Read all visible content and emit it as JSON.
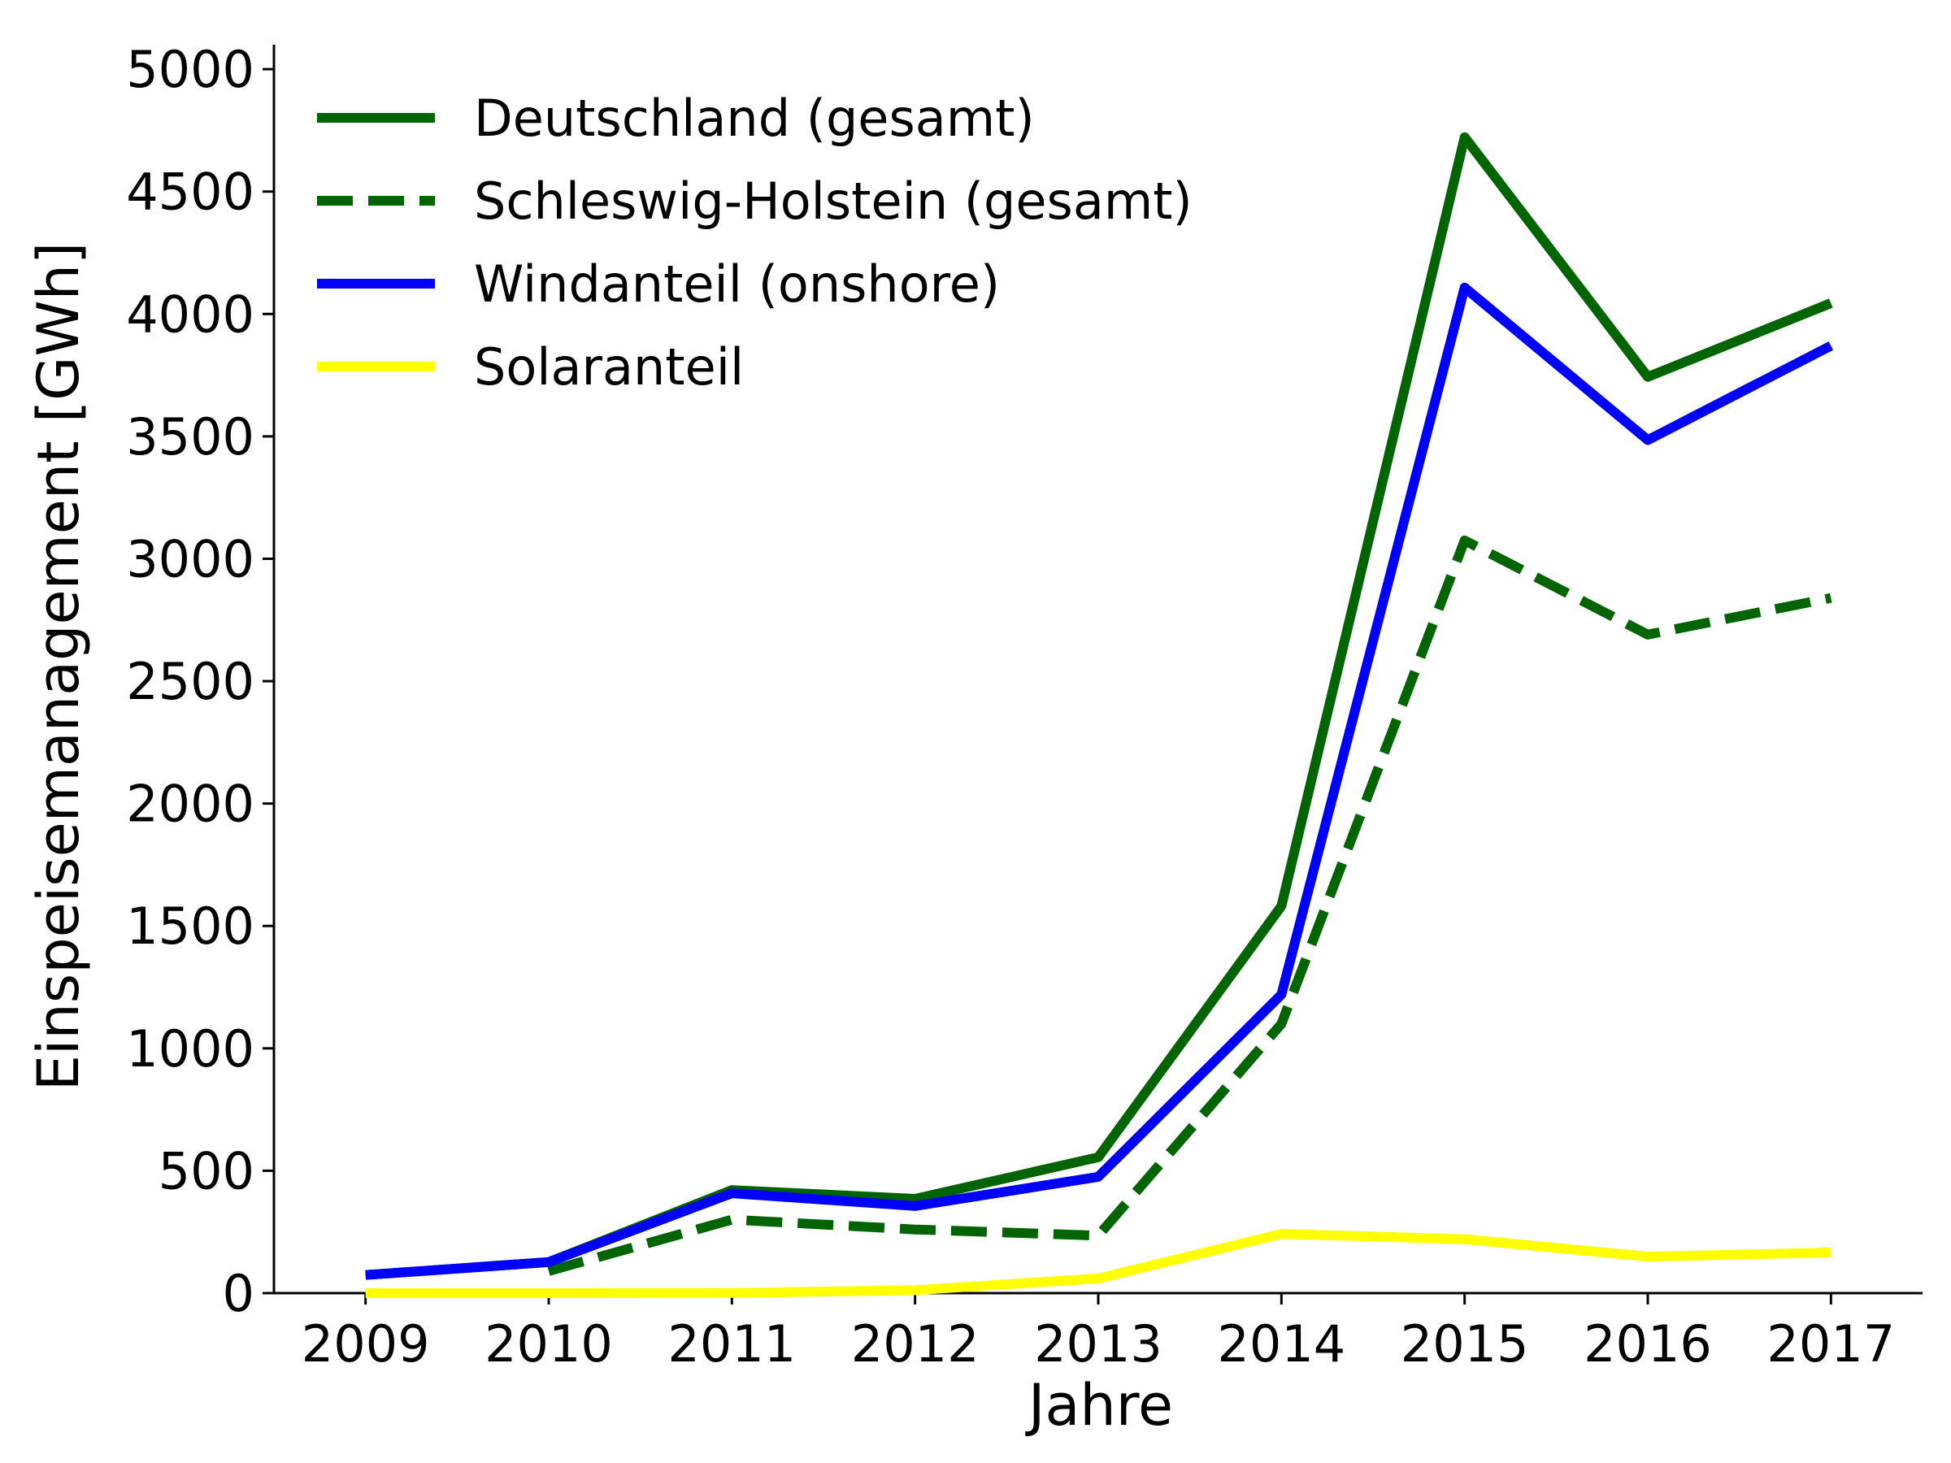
{
  "chart_data": {
    "type": "line",
    "xlabel": "Jahre",
    "ylabel": "Einspeisemanagement [GWh]",
    "x": [
      2009,
      2010,
      2011,
      2012,
      2013,
      2014,
      2015,
      2016,
      2017
    ],
    "xlim": [
      2008.5,
      2017.5
    ],
    "ylim": [
      0,
      5100
    ],
    "yticks": [
      0,
      500,
      1000,
      1500,
      2000,
      2500,
      3000,
      3500,
      4000,
      4500,
      5000
    ],
    "grid": false,
    "legend_position": "top-left",
    "series": [
      {
        "name": "Deutschland (gesamt)",
        "color": "#006400",
        "style": "solid",
        "values": [
          74,
          127,
          421,
          385,
          555,
          1581,
          4722,
          3743,
          4044
        ]
      },
      {
        "name": "Schleswig-Holstein (gesamt)",
        "color": "#006400",
        "style": "dashed",
        "values": [
          null,
          90,
          300,
          260,
          235,
          1100,
          3075,
          2690,
          2840
        ]
      },
      {
        "name": "Windanteil (onshore)",
        "color": "#0000ff",
        "style": "solid",
        "values": [
          74,
          127,
          408,
          356,
          475,
          1220,
          4108,
          3485,
          3870
        ]
      },
      {
        "name": "Solaranteil",
        "color": "#ffff00",
        "style": "solid",
        "values": [
          0,
          0,
          1,
          12,
          60,
          242,
          220,
          149,
          166
        ]
      }
    ]
  }
}
